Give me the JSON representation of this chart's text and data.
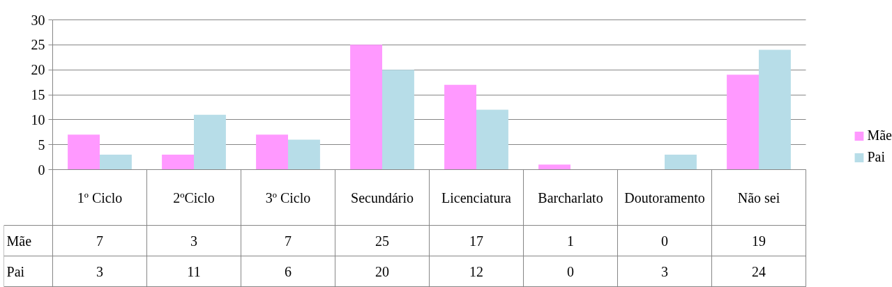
{
  "chart_data": {
    "type": "bar",
    "categories": [
      "1º Ciclo",
      "2ºCiclo",
      "3º Ciclo",
      "Secundário",
      "Licenciatura",
      "Barcharlato",
      "Doutoramento",
      "Não sei"
    ],
    "series": [
      {
        "name": "Mãe",
        "color": "#ff99ff",
        "values": [
          7,
          3,
          7,
          25,
          17,
          1,
          0,
          19
        ]
      },
      {
        "name": "Pai",
        "color": "#b7dde8",
        "values": [
          3,
          11,
          6,
          20,
          12,
          0,
          3,
          24
        ]
      }
    ],
    "ylim": [
      0,
      30
    ],
    "yticks": [
      0,
      5,
      10,
      15,
      20,
      25,
      30
    ],
    "grid": "y",
    "legend": "right",
    "data_labels": true
  }
}
